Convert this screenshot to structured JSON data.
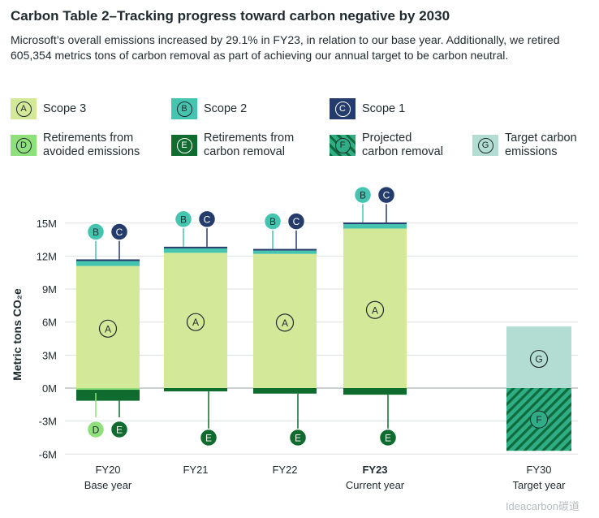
{
  "title": "Carbon Table 2–Tracking progress toward carbon negative by 2030",
  "subtitle": "Microsoft’s overall emissions increased by 29.1% in FY23, in relation to our base year. Additionally, we retired 605,354 metrics tons of carbon removal as part of achieving our annual target to be carbon neutral.",
  "legend": [
    {
      "letter": "A",
      "label": "Scope 3",
      "fill": "#d4e89a",
      "badge": "#1f2a2e",
      "badge_fill": "none"
    },
    {
      "letter": "B",
      "label": "Scope 2",
      "fill": "#45c4b0",
      "badge": "#1f2a2e",
      "badge_fill": "none"
    },
    {
      "letter": "C",
      "label": "Scope 1",
      "fill": "#243c6b",
      "badge": "#ffffff",
      "badge_fill": "none"
    },
    {
      "letter": "D",
      "label": "Retirements from\navoided emissions",
      "fill": "#8fe07a",
      "badge": "#1f2a2e",
      "badge_fill": "none"
    },
    {
      "letter": "E",
      "label": "Retirements from\ncarbon removal",
      "fill": "#0f6b2e",
      "badge": "#ffffff",
      "badge_fill": "none"
    },
    {
      "letter": "F",
      "label": "Projected\ncarbon removal",
      "fill": "hatch",
      "badge": "#1f2a2e",
      "badge_fill": "#2fae86"
    },
    {
      "letter": "G",
      "label": "Target carbon\nemissions",
      "fill": "#b3ddd2",
      "badge": "#1f2a2e",
      "badge_fill": "none"
    }
  ],
  "chart_data": {
    "type": "bar",
    "stacked": true,
    "ylabel": "Metric tons CO₂e",
    "ylim": [
      -6,
      15
    ],
    "yticks": [
      15,
      12,
      9,
      6,
      3,
      0,
      -3,
      -6
    ],
    "ytick_labels": [
      "15M",
      "12M",
      "9M",
      "6M",
      "3M",
      "0M",
      "-3M",
      "-6M"
    ],
    "grid": true,
    "categories": [
      {
        "label": "FY20",
        "sublabel": "Base year",
        "bold": false
      },
      {
        "label": "FY21",
        "sublabel": "",
        "bold": false
      },
      {
        "label": "FY22",
        "sublabel": "",
        "bold": false
      },
      {
        "label": "FY23",
        "sublabel": "Current year",
        "bold": true
      },
      {
        "label": "FY30",
        "sublabel": "Target year",
        "bold": false
      }
    ],
    "series": [
      {
        "letter": "A",
        "name": "Scope 3",
        "color": "#d4e89a",
        "values": [
          11.1,
          12.3,
          12.2,
          14.5,
          null
        ]
      },
      {
        "letter": "B",
        "name": "Scope 2",
        "color": "#45c4b0",
        "values": [
          0.45,
          0.4,
          0.3,
          0.4,
          null
        ]
      },
      {
        "letter": "C",
        "name": "Scope 1",
        "color": "#243c6b",
        "values": [
          0.15,
          0.15,
          0.15,
          0.15,
          null
        ]
      },
      {
        "letter": "D",
        "name": "Retirements from avoided emissions",
        "color": "#8fe07a",
        "values": [
          -0.15,
          null,
          null,
          null,
          null
        ]
      },
      {
        "letter": "E",
        "name": "Retirements from carbon removal",
        "color": "#0f6b2e",
        "values": [
          -1.0,
          -0.3,
          -0.5,
          -0.6,
          null
        ]
      },
      {
        "letter": "F",
        "name": "Projected carbon removal",
        "color": "#2fae86",
        "values": [
          null,
          null,
          null,
          null,
          -5.7
        ]
      },
      {
        "letter": "G",
        "name": "Target carbon emissions",
        "color": "#b3ddd2",
        "values": [
          null,
          null,
          null,
          null,
          5.6
        ]
      }
    ]
  },
  "watermark": "Ideacarbon碳道"
}
